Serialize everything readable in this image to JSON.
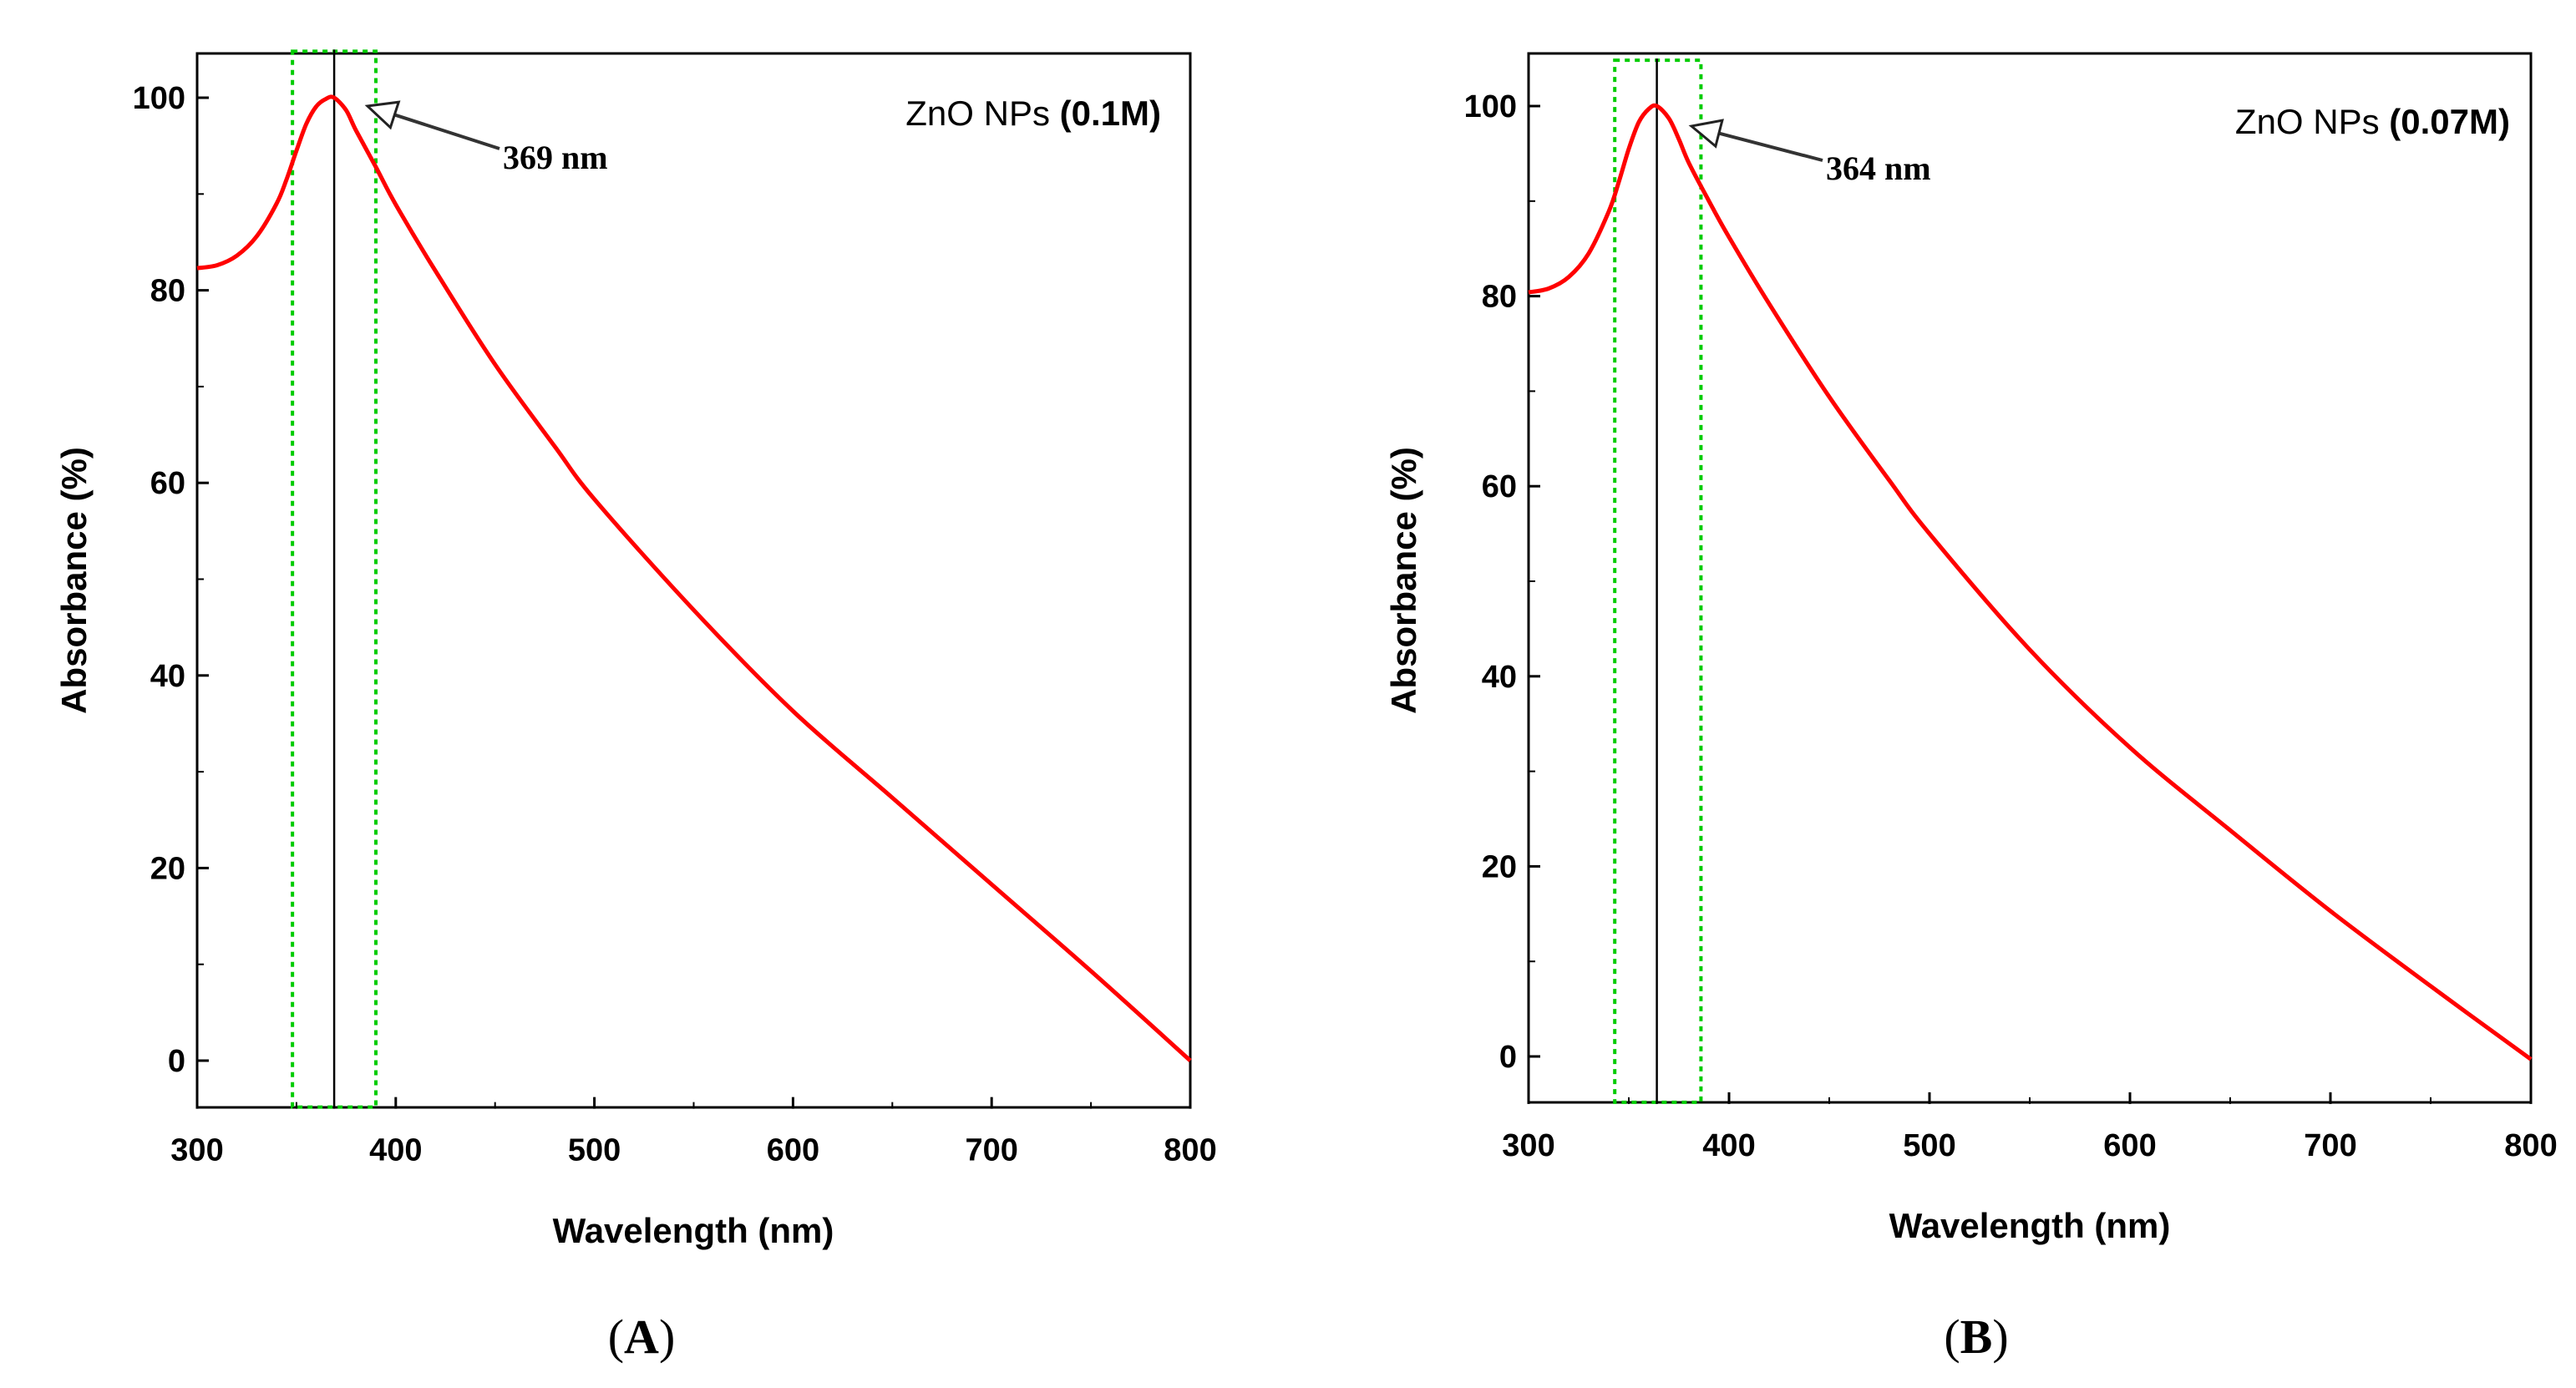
{
  "colors": {
    "curve": "#ff0000",
    "peak_line": "#000000",
    "highlight_box": "#00cc00",
    "axis": "#000000"
  },
  "chart_data": [
    {
      "type": "line",
      "panel": "A",
      "panel_label_open": "(",
      "panel_label_letter": "A",
      "panel_label_close": ")",
      "xlabel": "Wavelength (nm)",
      "ylabel": "Absorbance (%)",
      "xlim": [
        300,
        800
      ],
      "ylim": [
        -5,
        105
      ],
      "xticks": [
        300,
        400,
        500,
        600,
        700,
        800
      ],
      "yticks": [
        0,
        20,
        40,
        60,
        80,
        100
      ],
      "legend_prefix": "ZnO NPs ",
      "legend_bold": "(0.1M)",
      "peak_x": 369,
      "peak_label": "369 nm",
      "highlight_x": [
        348,
        390
      ],
      "series": [
        {
          "name": "ZnO NPs (0.1M)",
          "x": [
            300,
            310,
            320,
            330,
            340,
            345,
            350,
            355,
            360,
            365,
            369,
            375,
            380,
            390,
            400,
            420,
            450,
            480,
            500,
            550,
            600,
            650,
            700,
            750,
            800
          ],
          "y": [
            82.3,
            82.6,
            83.6,
            85.6,
            89.0,
            91.5,
            94.5,
            97.3,
            99.1,
            99.9,
            100,
            98.7,
            96.6,
            92.8,
            88.9,
            82.0,
            72.3,
            63.8,
            58.3,
            46.8,
            36.3,
            27.3,
            18.3,
            9.3,
            0
          ]
        }
      ]
    },
    {
      "type": "line",
      "panel": "B",
      "panel_label_open": "(",
      "panel_label_letter": "B",
      "panel_label_close": ")",
      "xlabel": "Wavelength (nm)",
      "ylabel": "Absorbance (%)",
      "xlim": [
        300,
        800
      ],
      "ylim": [
        -5,
        105
      ],
      "xticks": [
        300,
        400,
        500,
        600,
        700,
        800
      ],
      "yticks": [
        0,
        20,
        40,
        60,
        80,
        100
      ],
      "legend_prefix": "ZnO NPs ",
      "legend_bold": "(0.07M)",
      "peak_x": 364,
      "peak_label": "364 nm",
      "highlight_x": [
        343,
        386
      ],
      "series": [
        {
          "name": "ZnO NPs (0.07M)",
          "x": [
            300,
            310,
            320,
            330,
            340,
            345,
            350,
            355,
            360,
            364,
            370,
            375,
            380,
            390,
            400,
            420,
            450,
            480,
            500,
            550,
            600,
            650,
            700,
            750,
            800
          ],
          "y": [
            80.4,
            80.8,
            82.0,
            84.5,
            88.9,
            92.0,
            95.5,
            98.3,
            99.7,
            100,
            98.7,
            96.5,
            94.0,
            90.0,
            86.2,
            79.2,
            69.4,
            60.6,
            55.0,
            42.8,
            32.5,
            23.8,
            15.3,
            7.4,
            -0.3
          ]
        }
      ]
    }
  ]
}
